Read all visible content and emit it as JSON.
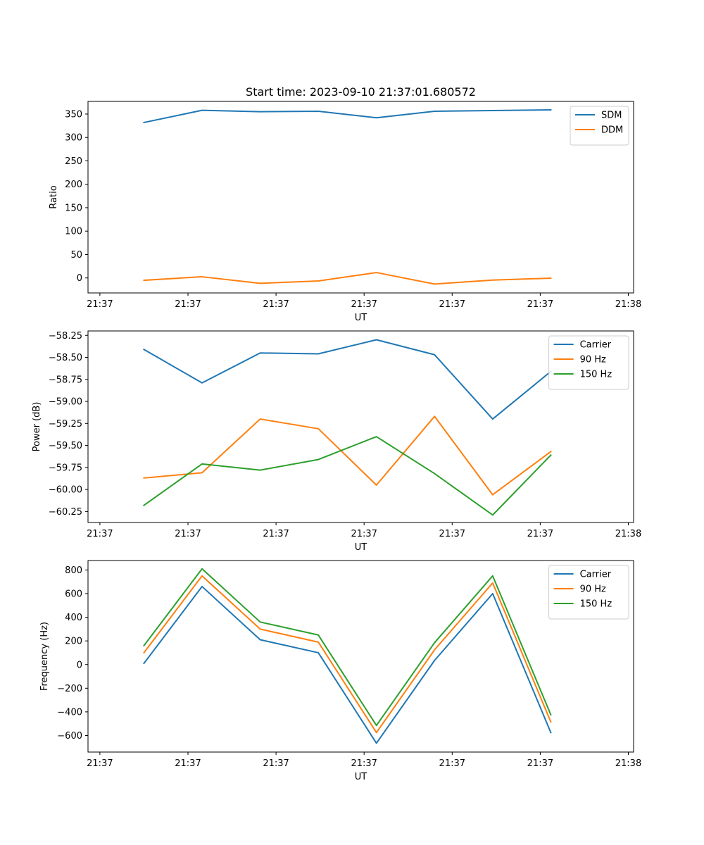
{
  "figure_title": "Start time: 2023-09-10 21:37:01.680572",
  "colors": {
    "c0": "#1f77b4",
    "c1": "#ff7f0e",
    "c2": "#2ca02c"
  },
  "chart_data": [
    {
      "type": "line",
      "title": "Start time: 2023-09-10 21:37:01.680572",
      "xlabel": "UT",
      "ylabel": "Ratio",
      "x_tick_labels": [
        "21:37",
        "21:37",
        "21:37",
        "21:37",
        "21:37",
        "21:37",
        "21:38"
      ],
      "xlim": [
        -0.135,
        6.06
      ],
      "x": [
        0.5,
        1.16,
        1.82,
        2.48,
        3.14,
        3.8,
        4.46,
        5.12
      ],
      "ylim": [
        -32,
        377
      ],
      "y_ticks": [
        0,
        50,
        100,
        150,
        200,
        250,
        300,
        350
      ],
      "y_tick_labels": [
        "0",
        "50",
        "100",
        "150",
        "200",
        "250",
        "300",
        "350"
      ],
      "legend_position": "upper right",
      "series": [
        {
          "name": "SDM",
          "color": "#1f77b4",
          "values": [
            332,
            358,
            355,
            356,
            342,
            356,
            357.5,
            359
          ]
        },
        {
          "name": "DDM",
          "color": "#ff7f0e",
          "values": [
            -5,
            2.5,
            -11.5,
            -6.5,
            11.5,
            -13,
            -4.5,
            -0.5
          ]
        }
      ]
    },
    {
      "type": "line",
      "title": "",
      "xlabel": "UT",
      "ylabel": "Power (dB)",
      "x_tick_labels": [
        "21:37",
        "21:37",
        "21:37",
        "21:37",
        "21:37",
        "21:37",
        "21:38"
      ],
      "xlim": [
        -0.135,
        6.06
      ],
      "x": [
        0.5,
        1.16,
        1.82,
        2.48,
        3.14,
        3.8,
        4.46,
        5.12
      ],
      "ylim": [
        -60.375,
        -58.2
      ],
      "y_ticks": [
        -60.25,
        -60.0,
        -59.75,
        -59.5,
        -59.25,
        -59.0,
        -58.75,
        -58.5,
        -58.25
      ],
      "y_tick_labels": [
        "−60.25",
        "−60.00",
        "−59.75",
        "−59.50",
        "−59.25",
        "−59.00",
        "−58.75",
        "−58.50",
        "−58.25"
      ],
      "legend_position": "upper right",
      "series": [
        {
          "name": "Carrier",
          "color": "#1f77b4",
          "values": [
            -58.41,
            -58.79,
            -58.45,
            -58.46,
            -58.3,
            -58.47,
            -59.2,
            -58.66
          ]
        },
        {
          "name": "90 Hz",
          "color": "#ff7f0e",
          "values": [
            -59.87,
            -59.81,
            -59.2,
            -59.31,
            -59.95,
            -59.17,
            -60.06,
            -59.57
          ]
        },
        {
          "name": "150 Hz",
          "color": "#2ca02c",
          "values": [
            -60.18,
            -59.71,
            -59.78,
            -59.66,
            -59.4,
            -59.82,
            -60.29,
            -59.61
          ]
        }
      ]
    },
    {
      "type": "line",
      "title": "",
      "xlabel": "UT",
      "ylabel": "Frequency (Hz)",
      "x_tick_labels": [
        "21:37",
        "21:37",
        "21:37",
        "21:37",
        "21:37",
        "21:37",
        "21:38"
      ],
      "xlim": [
        -0.135,
        6.06
      ],
      "x": [
        0.5,
        1.16,
        1.82,
        2.48,
        3.14,
        3.8,
        4.46,
        5.12
      ],
      "ylim": [
        -740,
        880
      ],
      "y_ticks": [
        -600,
        -400,
        -200,
        0,
        200,
        400,
        600,
        800
      ],
      "y_tick_labels": [
        "−600",
        "−400",
        "−200",
        "0",
        "200",
        "400",
        "600",
        "800"
      ],
      "legend_position": "upper right",
      "series": [
        {
          "name": "Carrier",
          "color": "#1f77b4",
          "values": [
            10,
            660,
            210,
            100,
            -665,
            35,
            600,
            -575
          ]
        },
        {
          "name": "90 Hz",
          "color": "#ff7f0e",
          "values": [
            100,
            750,
            300,
            190,
            -575,
            125,
            690,
            -485
          ]
        },
        {
          "name": "150 Hz",
          "color": "#2ca02c",
          "values": [
            160,
            810,
            360,
            250,
            -515,
            185,
            750,
            -425
          ]
        }
      ]
    }
  ]
}
